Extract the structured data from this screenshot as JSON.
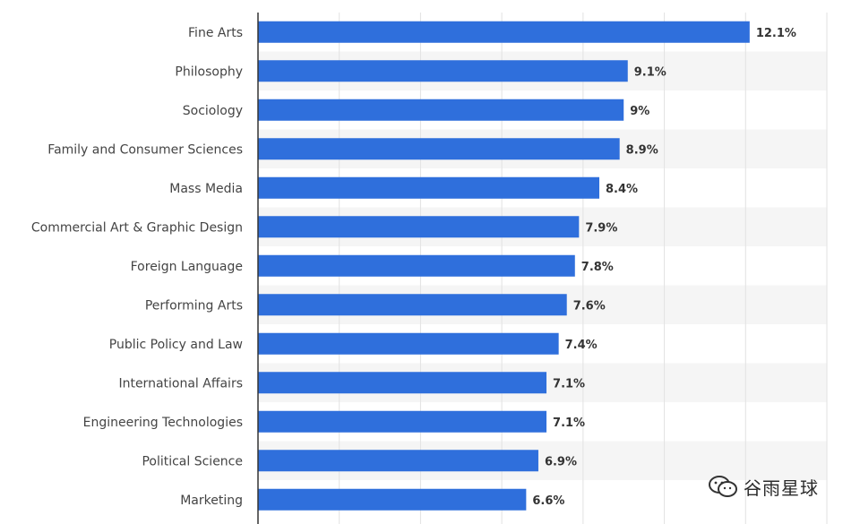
{
  "chart_data": {
    "type": "bar",
    "orientation": "horizontal",
    "categories": [
      "Fine Arts",
      "Philosophy",
      "Sociology",
      "Family and Consumer Sciences",
      "Mass Media",
      "Commercial Art & Graphic Design",
      "Foreign Language",
      "Performing Arts",
      "Public Policy and Law",
      "International Affairs",
      "Engineering Technologies",
      "Political Science",
      "Marketing"
    ],
    "values": [
      12.1,
      9.1,
      9.0,
      8.9,
      8.4,
      7.9,
      7.8,
      7.6,
      7.4,
      7.1,
      7.1,
      6.9,
      6.6
    ],
    "value_labels": [
      "12.1%",
      "9.1%",
      "9%",
      "8.9%",
      "8.4%",
      "7.9%",
      "7.8%",
      "7.6%",
      "7.4%",
      "7.1%",
      "7.1%",
      "6.9%",
      "6.6%"
    ],
    "xlim": [
      0,
      14
    ],
    "grid": true,
    "bar_color": "#2f6fdc"
  },
  "watermark": {
    "text": "谷雨星球",
    "icon": "wechat-icon"
  }
}
